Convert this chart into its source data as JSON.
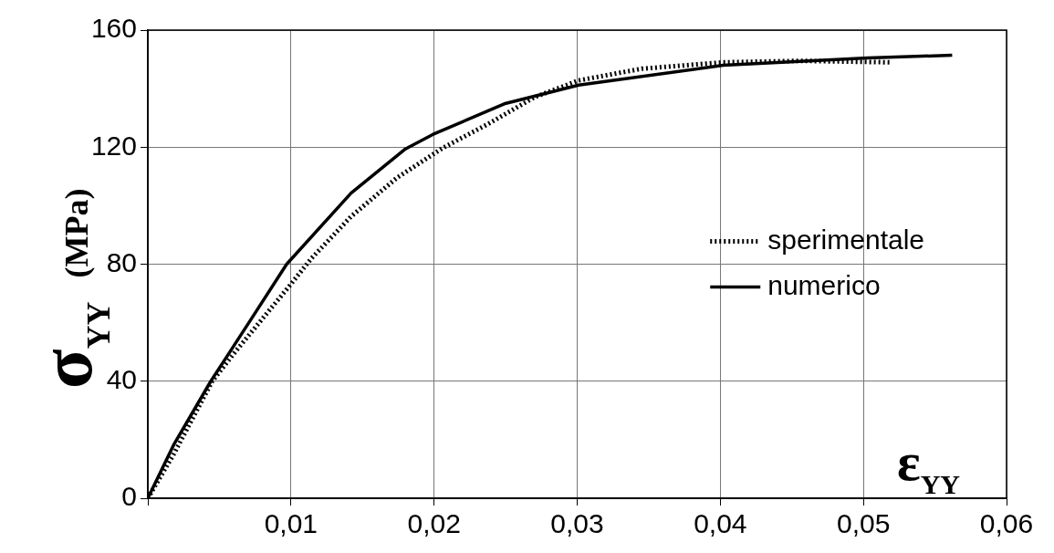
{
  "chart_data": {
    "type": "line",
    "xlabel": "ε$_{YY}$",
    "ylabel": "σ$_{YY}$ (MPa)",
    "xlim": [
      0,
      0.06
    ],
    "xticks": [
      {
        "value": 0,
        "label": null
      },
      {
        "value": 0.01,
        "label": "0,01"
      },
      {
        "value": 0.02,
        "label": "0,02"
      },
      {
        "value": 0.03,
        "label": "0,03"
      },
      {
        "value": 0.04,
        "label": "0,04"
      },
      {
        "value": 0.05,
        "label": "0,05"
      },
      {
        "value": 0.06,
        "label": "0,06"
      }
    ],
    "ylim": [
      0,
      160
    ],
    "yticks": [
      0,
      40,
      80,
      120,
      160
    ],
    "grid": true,
    "legend": "right",
    "marker": "none",
    "series": [
      {
        "name": "sperimentale",
        "color": "#000000",
        "line_style": "dotted",
        "x": [
          0,
          0.0018,
          0.0045,
          0.0061,
          0.0082,
          0.0099,
          0.0114,
          0.0142,
          0.0174,
          0.0206,
          0.0238,
          0.027,
          0.0301,
          0.0345,
          0.0402,
          0.0456,
          0.0519
        ],
        "values": [
          0,
          15,
          40,
          50,
          62.5,
          72.6,
          81.8,
          96.3,
          109.5,
          119.7,
          128,
          137,
          142.8,
          146.8,
          149,
          149.5,
          149
        ]
      },
      {
        "name": "numerico",
        "color": "#000000",
        "line_style": "solid",
        "x": [
          0,
          0.0018,
          0.0044,
          0.0071,
          0.0097,
          0.0142,
          0.018,
          0.0199,
          0.0249,
          0.0301,
          0.0402,
          0.0503,
          0.0562
        ],
        "values": [
          0,
          18.2,
          40,
          60.3,
          80,
          104.3,
          119.4,
          124.3,
          134.8,
          141.2,
          148,
          150.5,
          151.4
        ]
      }
    ]
  }
}
